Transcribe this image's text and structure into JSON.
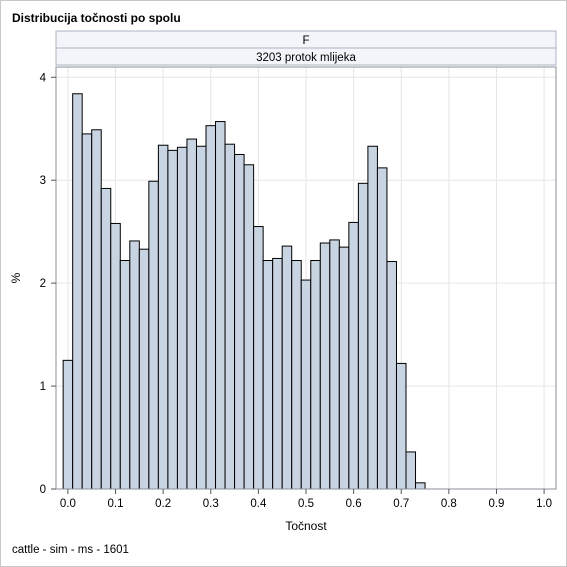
{
  "title": "Distribucija točnosti po spolu",
  "footnote": "cattle - sim - ms - 1601",
  "colors": {
    "bar_fill": "#c9d4e2",
    "bar_stroke": "#000000",
    "grid": "#e6e6e6",
    "strip_fill": "#f3f5fb",
    "axis": "#555555"
  },
  "chart_data": {
    "type": "bar",
    "title": "Distribucija točnosti po spolu",
    "panel_labels": [
      "F",
      "3203 protok mlijeka"
    ],
    "xlabel": "Točnost",
    "ylabel": "%",
    "xlim": [
      -0.025,
      1.025
    ],
    "ylim": [
      0,
      4.1
    ],
    "xticks": [
      "0.0",
      "0.1",
      "0.2",
      "0.3",
      "0.4",
      "0.5",
      "0.6",
      "0.7",
      "0.8",
      "0.9",
      "1.0"
    ],
    "yticks": [
      "0",
      "1",
      "2",
      "3",
      "4"
    ],
    "grid": true,
    "bin_width": 0.02,
    "bin_centers": [
      0.0,
      0.02,
      0.04,
      0.06,
      0.08,
      0.1,
      0.12,
      0.14,
      0.16,
      0.18,
      0.2,
      0.22,
      0.24,
      0.26,
      0.28,
      0.3,
      0.32,
      0.34,
      0.36,
      0.38,
      0.4,
      0.42,
      0.44,
      0.46,
      0.48,
      0.5,
      0.52,
      0.54,
      0.56,
      0.58,
      0.6,
      0.62,
      0.64,
      0.66,
      0.68,
      0.7,
      0.72,
      0.74
    ],
    "values": [
      1.25,
      3.84,
      3.45,
      3.49,
      2.92,
      2.58,
      2.22,
      2.41,
      2.33,
      2.99,
      3.34,
      3.29,
      3.32,
      3.4,
      3.33,
      3.53,
      3.57,
      3.35,
      3.25,
      3.15,
      2.55,
      2.22,
      2.24,
      2.36,
      2.22,
      2.03,
      2.22,
      2.39,
      2.42,
      2.35,
      2.59,
      2.97,
      3.33,
      3.12,
      2.21,
      1.22,
      0.36,
      0.06
    ]
  }
}
